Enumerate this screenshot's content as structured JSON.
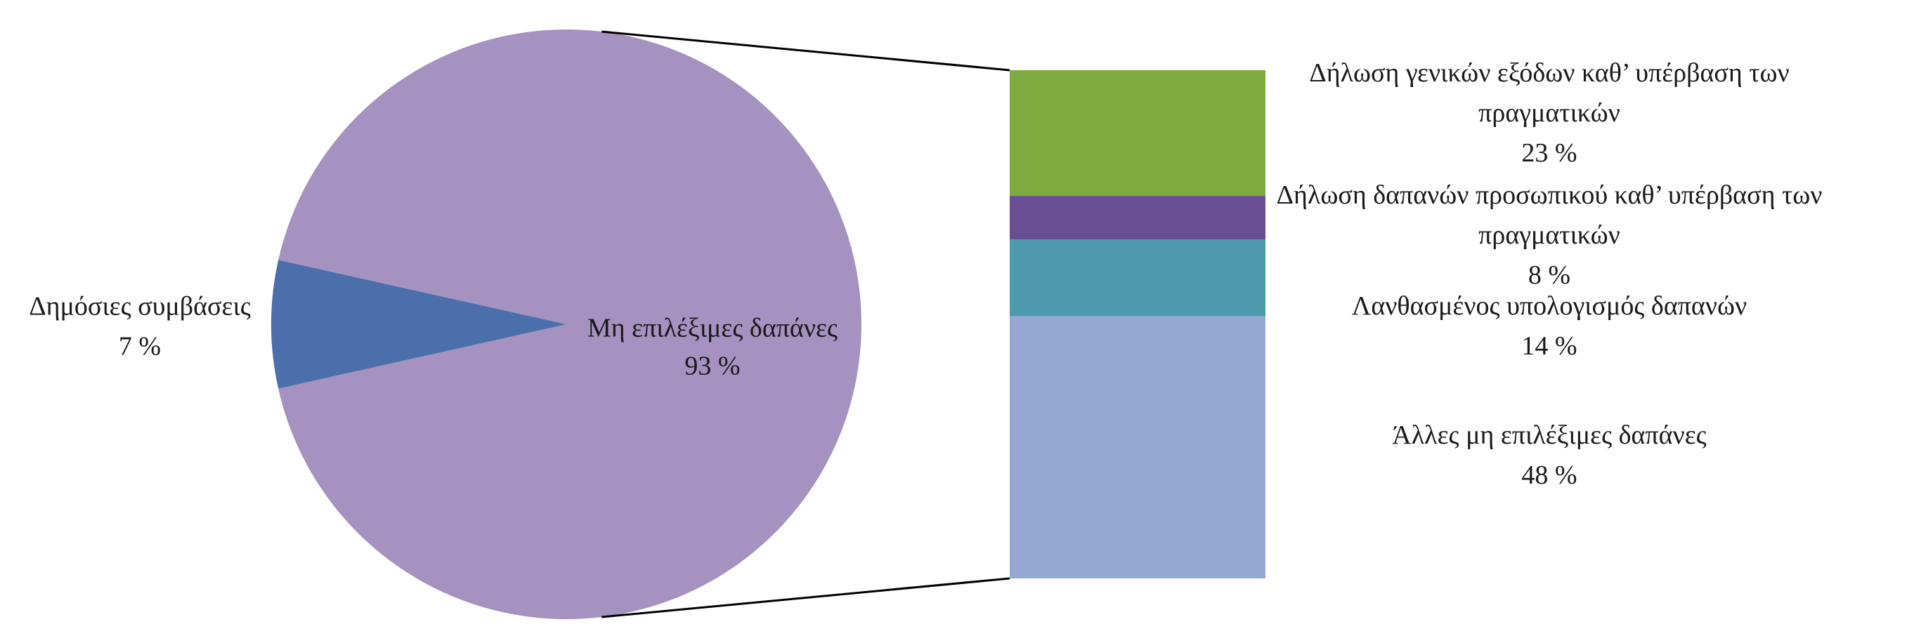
{
  "chart_data": {
    "type": "bar-of-pie",
    "pie": {
      "categories": [
        "Δημόσιες συμβάσεις",
        "Μη επιλέξιμες δαπάνες"
      ],
      "values": [
        7,
        93
      ],
      "value_labels": [
        "7 %",
        "93 %"
      ],
      "colors": [
        "#4a6fab",
        "#a692c0"
      ]
    },
    "bar": {
      "categories": [
        "Δήλωση γενικών εξόδων καθ’ υπέρβαση των πραγματικών",
        "Δήλωση δαπανών προσωπικού καθ’ υπέρβαση των πραγματικών",
        "Λανθασμένος υπολογισμός δαπανών",
        "Άλλες μη επιλέξιμες δαπάνες"
      ],
      "values": [
        23,
        8,
        14,
        48
      ],
      "value_labels": [
        "23 %",
        "8 %",
        "14 %",
        "48 %"
      ],
      "colors": [
        "#7dab3f",
        "#6a4e94",
        "#4e9aad",
        "#95a8d3"
      ]
    }
  }
}
